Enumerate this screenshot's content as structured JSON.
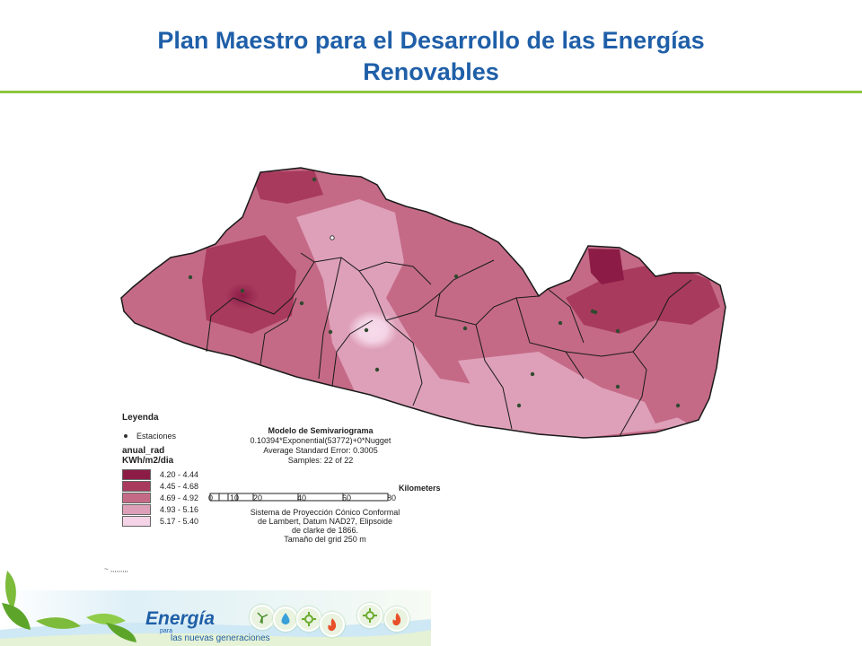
{
  "slide": {
    "title_line1": "Plan Maestro para el Desarrollo de las Energías",
    "title_line2": "Renovables"
  },
  "legend": {
    "heading": "Leyenda",
    "stations_label": "Estaciones",
    "variable": "anual_rad",
    "unit": "KWh/m2/dia",
    "classes": [
      {
        "label": "4.20 - 4.44",
        "color": "#8c1c45"
      },
      {
        "label": "4.45 - 4.68",
        "color": "#a83a5e"
      },
      {
        "label": "4.69 - 4.92",
        "color": "#c46a87"
      },
      {
        "label": "4.93 - 5.16",
        "color": "#dea0b8"
      },
      {
        "label": "5.17 - 5.40",
        "color": "#f4d4e6"
      }
    ]
  },
  "model": {
    "title": "Modelo de Semivariograma",
    "formula": "0.10394*Exponential(53772)+0*Nugget",
    "error": "Average Standard Error: 0.3005",
    "samples": "Samples: 22 of 22"
  },
  "scale": {
    "unit_label": "Kilometers",
    "ticks": [
      "0",
      "10",
      "20",
      "40",
      "60",
      "80"
    ]
  },
  "projection": {
    "line1": "Sistema de Proyección Cónico Conformal",
    "line2": "de Lambert, Datum NAD27, Elipsoide",
    "line3": "de clarke de 1866.",
    "line4": "Tamaño del grid 250 m"
  },
  "cutoff_text": "~ ,,,,,,,,,",
  "banner": {
    "brand": "Energía",
    "tag_small": "para",
    "tag_main": "las nuevas generaciones",
    "icons": [
      "wind-turbine-icon",
      "water-drop-icon",
      "sun-gear-icon",
      "flame-icon",
      "sun-gear-icon-2",
      "flame-icon-2"
    ]
  },
  "colors": {
    "title": "#1f5fa8",
    "rule": "#8cc63f",
    "boundary": "#1a1a1a"
  }
}
